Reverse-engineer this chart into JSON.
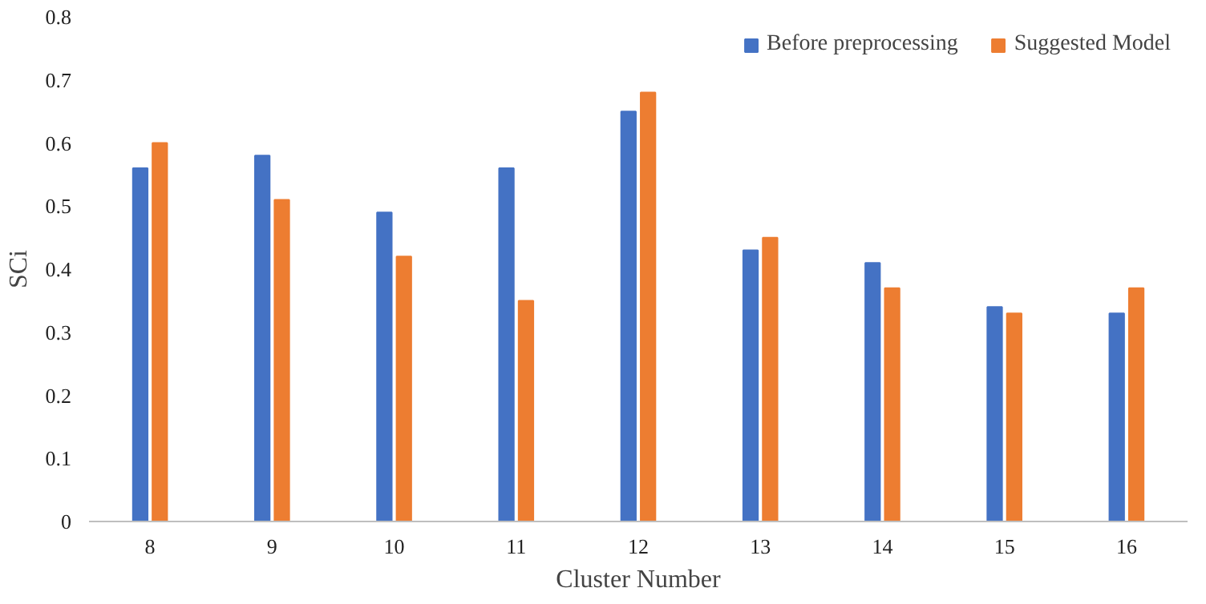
{
  "chart_data": {
    "type": "bar",
    "xlabel": "Cluster Number",
    "ylabel": "SCi",
    "categories": [
      "8",
      "9",
      "10",
      "11",
      "12",
      "13",
      "14",
      "15",
      "16"
    ],
    "series": [
      {
        "name": "Before preprocessing",
        "color": "#4472c4",
        "values": [
          0.56,
          0.58,
          0.49,
          0.56,
          0.65,
          0.43,
          0.41,
          0.34,
          0.33
        ]
      },
      {
        "name": "Suggested Model",
        "color": "#ed7d31",
        "values": [
          0.6,
          0.51,
          0.42,
          0.35,
          0.68,
          0.45,
          0.37,
          0.33,
          0.37
        ]
      }
    ],
    "ylim": [
      0,
      0.8
    ],
    "yticks": [
      0,
      0.1,
      0.2,
      0.3,
      0.4,
      0.5,
      0.6,
      0.7,
      0.8
    ],
    "grid": false,
    "legend": "top right"
  }
}
